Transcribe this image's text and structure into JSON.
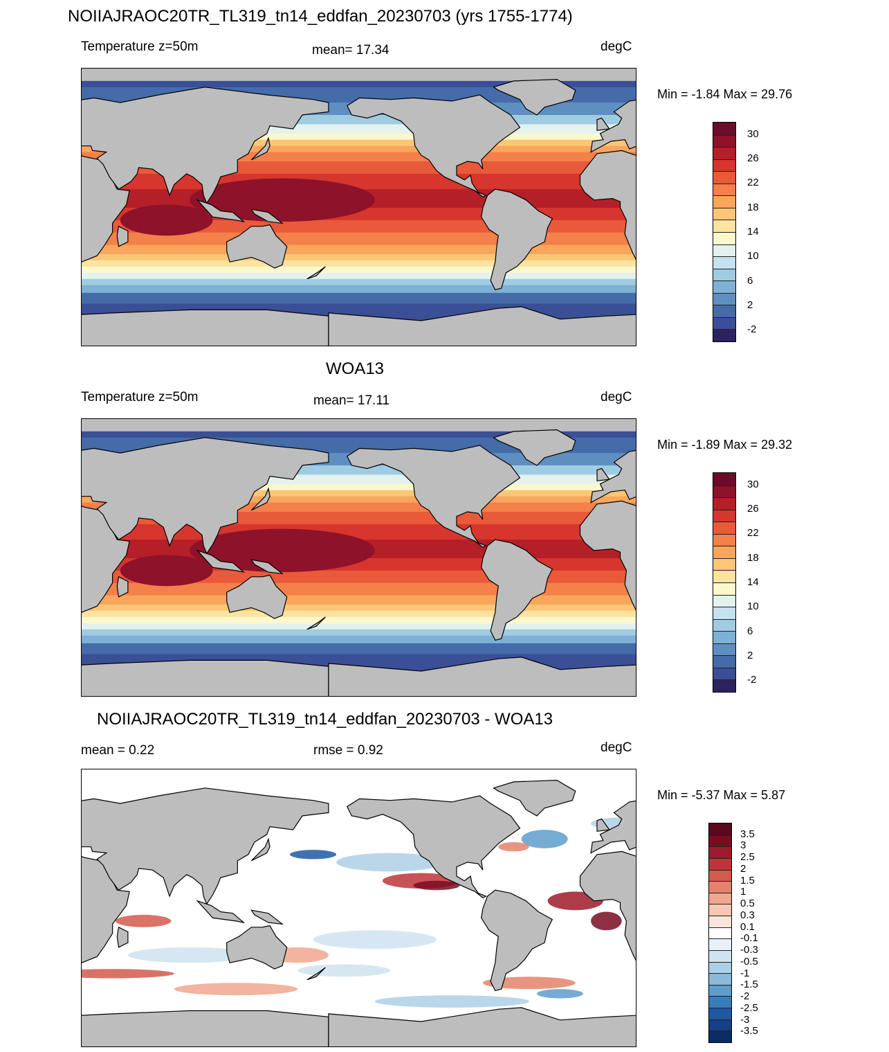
{
  "panels": [
    {
      "title": "NOIIAJRAOC20TR_TL319_tn14_eddfan_20230703 (yrs 1755-1774)",
      "left": "Temperature z=50m",
      "center": "mean=  17.34",
      "right": "degC",
      "minmax": "Min =  -1.84 Max =  29.76",
      "palette": "temp",
      "colorbar_labels": [
        "30",
        "26",
        "22",
        "18",
        "14",
        "10",
        "6",
        "2",
        "-2"
      ]
    },
    {
      "title": "WOA13",
      "left": "Temperature z=50m",
      "center": "mean=  17.11",
      "right": "degC",
      "minmax": "Min =  -1.89 Max =  29.32",
      "palette": "temp",
      "colorbar_labels": [
        "30",
        "26",
        "22",
        "18",
        "14",
        "10",
        "6",
        "2",
        "-2"
      ]
    },
    {
      "title": "NOIIAJRAOC20TR_TL319_tn14_eddfan_20230703 - WOA13",
      "left": "mean =   0.22",
      "center": "rmse =   0.92",
      "right": "degC",
      "minmax": "Min =  -5.37 Max =    5.87",
      "palette": "diff",
      "colorbar_labels": [
        "3.5",
        "3",
        "2.5",
        "2",
        "1.5",
        "1",
        "0.5",
        "0.3",
        "0.1",
        "-0.1",
        "-0.3",
        "-0.5",
        "-1",
        "-1.5",
        "-2",
        "-2.5",
        "-3",
        "-3.5"
      ]
    }
  ],
  "colors": {
    "land": "#bdbdbd",
    "temp_palette": [
      "#2d2260",
      "#3a4f96",
      "#456ca8",
      "#5f8fc1",
      "#7fb1d6",
      "#a0cce2",
      "#c4e2ef",
      "#e4f2ee",
      "#fbf8cc",
      "#fde3a0",
      "#fcc677",
      "#f9a65d",
      "#f4804a",
      "#e95a3a",
      "#d6362d",
      "#b51f28",
      "#8e1229",
      "#6b0d28"
    ],
    "diff_palette": [
      "#0a2e63",
      "#163f85",
      "#1f58a3",
      "#3a7cba",
      "#5e9dcb",
      "#88bad9",
      "#aed0e6",
      "#cfe3f0",
      "#e8f1f7",
      "#ffffff",
      "#fbe4da",
      "#f6c7b2",
      "#f0a78d",
      "#e4826a",
      "#d25a4c",
      "#bd3538",
      "#9f1a2c",
      "#7a0c22",
      "#5a0a1e"
    ]
  }
}
